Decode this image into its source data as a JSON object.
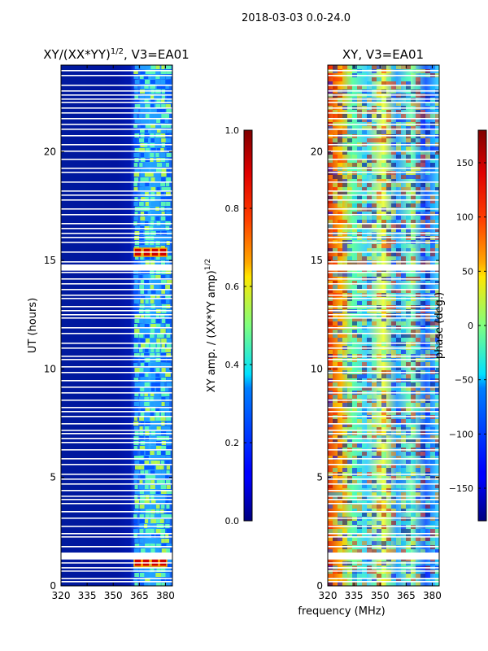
{
  "suptitle": "2018-03-03 0.0-24.0",
  "xlabel": "frequency (MHz)",
  "chart_data": [
    {
      "type": "heatmap",
      "title_main": "XY/(XX*YY)",
      "title_exp": "1/2",
      "title_tail": ", V3=EA01",
      "xlabel": "",
      "ylabel": "UT (hours)",
      "xlim": [
        320,
        384
      ],
      "ylim": [
        0,
        24
      ],
      "xticks": [
        "320",
        "335",
        "350",
        "365",
        "380"
      ],
      "yticks": [
        "0",
        "5",
        "10",
        "15",
        "20"
      ],
      "colorbar": {
        "label_main": "XY amp. / (XX*YY amp)",
        "label_exp": "1/2",
        "range": [
          0.0,
          1.0
        ],
        "ticks": [
          "0.0",
          "0.2",
          "0.4",
          "0.6",
          "0.8",
          "1.0"
        ]
      },
      "colormap": "jet"
    },
    {
      "type": "heatmap",
      "title": "XY, V3=EA01",
      "xlabel": "",
      "ylabel": "",
      "xlim": [
        320,
        384
      ],
      "ylim": [
        0,
        24
      ],
      "xticks": [
        "320",
        "335",
        "350",
        "365",
        "380"
      ],
      "yticks": [
        "0",
        "5",
        "10",
        "15",
        "20"
      ],
      "colorbar": {
        "label": "phase (deg.)",
        "range": [
          -180,
          180
        ],
        "ticks": [
          "−150",
          "−100",
          "−50",
          "0",
          "50",
          "100",
          "150"
        ]
      },
      "colormap": "jet"
    }
  ],
  "colors": {
    "jet_low": "#00007f",
    "jet_mid": "#7fff7f",
    "jet_high": "#7f0000"
  }
}
